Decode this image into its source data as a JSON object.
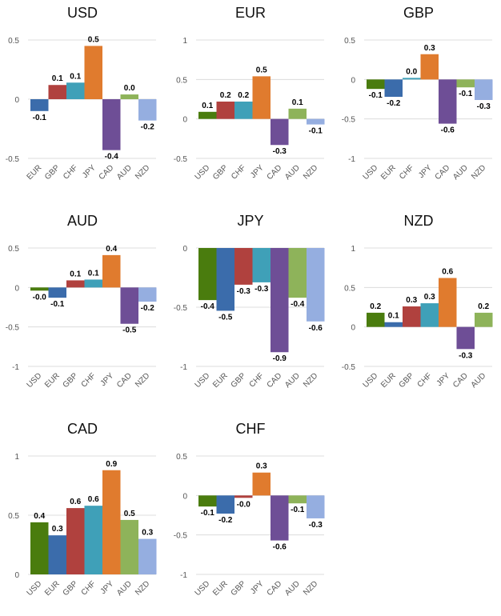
{
  "colors": {
    "USD": "#4a7c0e",
    "EUR": "#3b6cab",
    "GBP": "#b0413e",
    "CHF": "#3fa0b8",
    "JPY": "#e07b2e",
    "CAD": "#6e4e96",
    "AUD": "#8eb35a",
    "NZD": "#95aee0"
  },
  "chart_data": [
    {
      "type": "bar",
      "title": "USD",
      "categories": [
        "EUR",
        "GBP",
        "CHF",
        "JPY",
        "CAD",
        "AUD",
        "NZD"
      ],
      "values": [
        -0.1,
        0.12,
        0.14,
        0.45,
        -0.43,
        0.04,
        -0.18
      ],
      "labels": [
        "-0.1",
        "0.1",
        "0.1",
        "0.5",
        "-0.4",
        "0.0",
        "-0.2"
      ],
      "ylim": [
        -0.5,
        0.5
      ],
      "ticks": [
        0.5,
        0,
        -0.5
      ],
      "tick_labels": [
        "0.5",
        "0",
        "-0.5"
      ]
    },
    {
      "type": "bar",
      "title": "EUR",
      "categories": [
        "USD",
        "GBP",
        "CHF",
        "JPY",
        "CAD",
        "AUD",
        "NZD"
      ],
      "values": [
        0.09,
        0.22,
        0.22,
        0.54,
        -0.33,
        0.13,
        -0.07
      ],
      "labels": [
        "0.1",
        "0.2",
        "0.2",
        "0.5",
        "-0.3",
        "0.1",
        "-0.1"
      ],
      "ylim": [
        -0.5,
        1
      ],
      "ticks": [
        1,
        0.5,
        0,
        -0.5
      ],
      "tick_labels": [
        "1",
        "0.5",
        "0",
        "-0.5"
      ]
    },
    {
      "type": "bar",
      "title": "GBP",
      "categories": [
        "USD",
        "EUR",
        "CHF",
        "JPY",
        "CAD",
        "AUD",
        "NZD"
      ],
      "values": [
        -0.12,
        -0.22,
        0.02,
        0.32,
        -0.56,
        -0.1,
        -0.26
      ],
      "labels": [
        "-0.1",
        "-0.2",
        "0.0",
        "0.3",
        "-0.6",
        "-0.1",
        "-0.3"
      ],
      "ylim": [
        -1,
        0.5
      ],
      "ticks": [
        0.5,
        0,
        -0.5,
        -1
      ],
      "tick_labels": [
        "0.5",
        "0",
        "-0.5",
        "-1"
      ]
    },
    {
      "type": "bar",
      "title": "AUD",
      "categories": [
        "USD",
        "EUR",
        "GBP",
        "CHF",
        "JPY",
        "CAD",
        "NZD"
      ],
      "values": [
        -0.04,
        -0.13,
        0.09,
        0.1,
        0.41,
        -0.46,
        -0.18
      ],
      "labels": [
        "-0.0",
        "-0.1",
        "0.1",
        "0.1",
        "0.4",
        "-0.5",
        "-0.2"
      ],
      "ylim": [
        -1,
        0.5
      ],
      "ticks": [
        0.5,
        0,
        -0.5,
        -1
      ],
      "tick_labels": [
        "0.5",
        "0",
        "-0.5",
        "-1"
      ]
    },
    {
      "type": "bar",
      "title": "JPY",
      "categories": [
        "USD",
        "EUR",
        "GBP",
        "CHF",
        "CAD",
        "AUD",
        "NZD"
      ],
      "values": [
        -0.44,
        -0.53,
        -0.31,
        -0.29,
        -0.88,
        -0.42,
        -0.62
      ],
      "labels": [
        "-0.4",
        "-0.5",
        "-0.3",
        "-0.3",
        "-0.9",
        "-0.4",
        "-0.6"
      ],
      "ylim": [
        -1,
        0
      ],
      "ticks": [
        0,
        -0.5,
        -1
      ],
      "tick_labels": [
        "0",
        "-0.5",
        "-1"
      ]
    },
    {
      "type": "bar",
      "title": "NZD",
      "categories": [
        "USD",
        "EUR",
        "GBP",
        "CHF",
        "JPY",
        "CAD",
        "AUD"
      ],
      "values": [
        0.18,
        0.06,
        0.26,
        0.3,
        0.62,
        -0.28,
        0.18
      ],
      "labels": [
        "0.2",
        "0.1",
        "0.3",
        "0.3",
        "0.6",
        "-0.3",
        "0.2"
      ],
      "ylim": [
        -0.5,
        1
      ],
      "ticks": [
        1,
        0.5,
        0,
        -0.5
      ],
      "tick_labels": [
        "1",
        "0.5",
        "0",
        "-0.5"
      ]
    },
    {
      "type": "bar",
      "title": "CAD",
      "categories": [
        "USD",
        "EUR",
        "GBP",
        "CHF",
        "JPY",
        "AUD",
        "NZD"
      ],
      "values": [
        0.44,
        0.33,
        0.56,
        0.58,
        0.88,
        0.46,
        0.3
      ],
      "labels": [
        "0.4",
        "0.3",
        "0.6",
        "0.6",
        "0.9",
        "0.5",
        "0.3"
      ],
      "ylim": [
        0,
        1
      ],
      "ticks": [
        1,
        0.5,
        0
      ],
      "tick_labels": [
        "1",
        "0.5",
        "0"
      ]
    },
    {
      "type": "bar",
      "title": "CHF",
      "categories": [
        "USD",
        "EUR",
        "GBP",
        "JPY",
        "CAD",
        "AUD",
        "NZD"
      ],
      "values": [
        -0.14,
        -0.23,
        -0.03,
        0.29,
        -0.57,
        -0.1,
        -0.29
      ],
      "labels": [
        "-0.1",
        "-0.2",
        "-0.0",
        "0.3",
        "-0.6",
        "-0.1",
        "-0.3"
      ],
      "ylim": [
        -1,
        0.5
      ],
      "ticks": [
        0.5,
        0,
        -0.5,
        -1
      ],
      "tick_labels": [
        "0.5",
        "0",
        "-0.5",
        "-1"
      ]
    }
  ]
}
